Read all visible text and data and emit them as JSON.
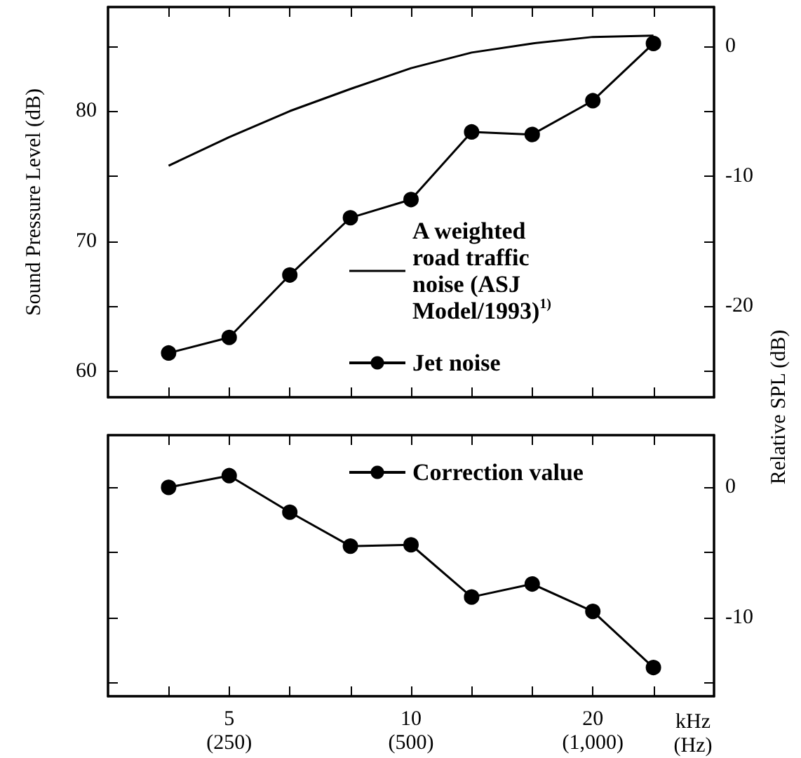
{
  "chart_data": [
    {
      "type": "line",
      "ylabel": "Sound Pressure Level (dB)",
      "y2label": "Relative SPL (dB)",
      "categories": [
        null,
        null,
        null,
        null,
        null,
        null,
        null,
        null,
        null
      ],
      "ylim": [
        58,
        88
      ],
      "yticks": [
        60,
        {
          "value": 65,
          "label": null
        },
        70,
        {
          "value": 75,
          "label": null
        },
        80,
        {
          "value": 85,
          "label": null
        }
      ],
      "y2lim": [
        -27,
        3
      ],
      "y2ticks": [
        {
          "value": -25,
          "label": null
        },
        -20,
        {
          "value": -15,
          "label": null
        },
        -10,
        {
          "value": -5,
          "label": null
        },
        0
      ],
      "legend": "bottom right",
      "tick_labels": "y",
      "series": [
        {
          "name": "A weighted road traffic noise (ASJ Model/1993)$^{1)}$",
          "color": "#000000",
          "marker": "none",
          "values": [
            75.8,
            78.0,
            80.0,
            81.7,
            83.3,
            84.5,
            85.2,
            85.7,
            85.8
          ]
        },
        {
          "name": "Jet noise",
          "color": "#000000",
          "marker": "circle",
          "values": [
            61.4,
            62.6,
            67.4,
            71.8,
            73.2,
            78.4,
            78.2,
            80.8,
            85.2
          ]
        }
      ]
    },
    {
      "type": "line",
      "xlabel": "kHz\n(Hz)",
      "categories": [
        null,
        "5\n(250)",
        null,
        null,
        "10\n(500)",
        null,
        null,
        "20\n(1,000)",
        null
      ],
      "y2lim": [
        -16,
        4
      ],
      "y2ticks": [
        {
          "value": -15,
          "label": null
        },
        -10,
        {
          "value": -5,
          "label": null
        },
        0
      ],
      "legend": "top right",
      "series": [
        {
          "name": "Correction value",
          "color": "#000000",
          "marker": "circle",
          "axis": "y2",
          "values": [
            0,
            0.9,
            -1.9,
            -4.5,
            -4.4,
            -8.4,
            -7.4,
            -9.5,
            -13.8
          ]
        }
      ]
    }
  ]
}
